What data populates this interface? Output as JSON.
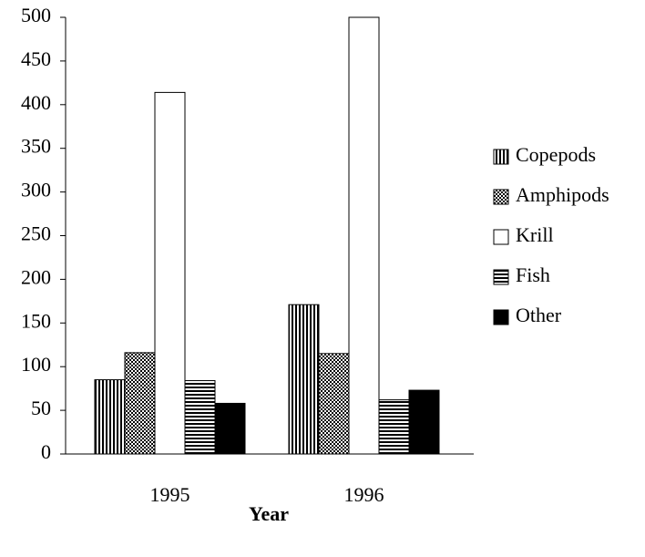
{
  "chart_data": {
    "type": "bar",
    "x_label": "Year",
    "categories": [
      "1995",
      "1996"
    ],
    "series": [
      {
        "name": "Copepods",
        "color": "#000000",
        "hatch": "vertical",
        "values": [
          85,
          171
        ]
      },
      {
        "name": "Amphipods",
        "color": "#000000",
        "hatch": "crosshatch",
        "values": [
          116,
          115
        ]
      },
      {
        "name": "Krill",
        "color": "#ffffff",
        "hatch": "none",
        "values": [
          414,
          500
        ]
      },
      {
        "name": "Fish",
        "color": "#000000",
        "hatch": "horizontal",
        "values": [
          84,
          62
        ]
      },
      {
        "name": "Other",
        "color": "#000000",
        "hatch": "solid",
        "values": [
          58,
          73
        ]
      }
    ],
    "ylim": [
      0,
      500
    ],
    "yticks": [
      0,
      50,
      100,
      150,
      200,
      250,
      300,
      350,
      400,
      450,
      500
    ],
    "grid": false,
    "legend": "right"
  }
}
